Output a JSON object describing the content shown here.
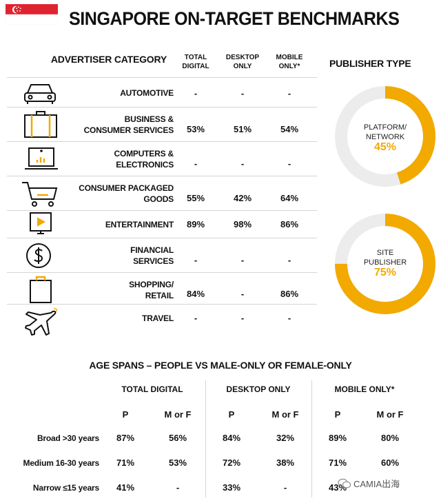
{
  "title": "SINGAPORE ON-TARGET BENCHMARKS",
  "header": {
    "category": "ADVERTISER CATEGORY",
    "total": "TOTAL\nDIGITAL",
    "desktop": "DESKTOP\nONLY",
    "mobile": "MOBILE\nONLY*"
  },
  "categories": [
    {
      "label": "AUTOMOTIVE",
      "icon": "car-icon",
      "total": "-",
      "desktop": "-",
      "mobile": "-"
    },
    {
      "label": "BUSINESS &\nCONSUMER SERVICES",
      "icon": "briefcase-icon",
      "total": "53%",
      "desktop": "51%",
      "mobile": "54%"
    },
    {
      "label": "COMPUTERS &\nELECTRONICS",
      "icon": "laptop-icon",
      "total": "-",
      "desktop": "-",
      "mobile": "-"
    },
    {
      "label": "CONSUMER PACKAGED\nGOODS",
      "icon": "shopping-cart-icon",
      "total": "55%",
      "desktop": "42%",
      "mobile": "64%"
    },
    {
      "label": "ENTERTAINMENT",
      "icon": "tv-play-icon",
      "total": "89%",
      "desktop": "98%",
      "mobile": "86%"
    },
    {
      "label": "FINANCIAL\nSERVICES",
      "icon": "dollar-coin-icon",
      "total": "-",
      "desktop": "-",
      "mobile": "-"
    },
    {
      "label": "SHOPPING/\nRETAIL",
      "icon": "shopping-bag-icon",
      "total": "84%",
      "desktop": "-",
      "mobile": "86%"
    },
    {
      "label": "TRAVEL",
      "icon": "airplane-icon",
      "total": "-",
      "desktop": "-",
      "mobile": "-"
    }
  ],
  "publisher": {
    "title": "PUBLISHER TYPE",
    "items": [
      {
        "label": "PLATFORM/\nNETWORK",
        "pct_label": "45%",
        "fraction": 0.45
      },
      {
        "label": "SITE\nPUBLISHER",
        "pct_label": "75%",
        "fraction": 0.75
      }
    ]
  },
  "age": {
    "title": "AGE SPANS – PEOPLE VS MALE-ONLY OR FEMALE-ONLY",
    "groups": [
      "TOTAL DIGITAL",
      "DESKTOP ONLY",
      "MOBILE ONLY*"
    ],
    "sub": [
      "P",
      "M or F",
      "P",
      "M or F",
      "P",
      "M or F"
    ],
    "rows": [
      {
        "label": "Broad >30 years",
        "values": [
          "87%",
          "56%",
          "84%",
          "32%",
          "89%",
          "80%"
        ]
      },
      {
        "label": "Medium 16-30 years",
        "values": [
          "71%",
          "53%",
          "72%",
          "38%",
          "71%",
          "60%"
        ]
      },
      {
        "label": "Narrow ≤15 years",
        "values": [
          "41%",
          "-",
          "33%",
          "-",
          "43%",
          "-"
        ]
      }
    ]
  },
  "watermark": "CAMIA出海",
  "colors": {
    "accent": "#f2a900",
    "ring_bg": "#ececec",
    "flag_red": "#e0242f"
  }
}
